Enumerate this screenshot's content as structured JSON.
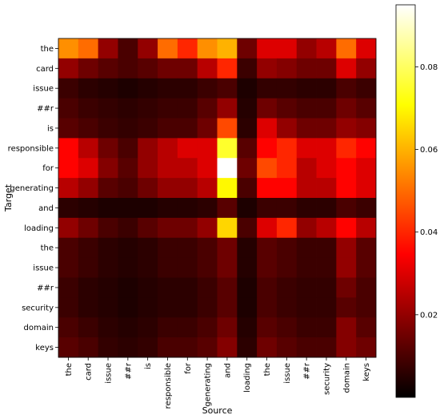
{
  "chart_data": {
    "type": "heatmap",
    "xlabel": "Source",
    "ylabel": "Target",
    "x_tokens": [
      "the",
      "card",
      "issue",
      "##r",
      "is",
      "responsible",
      "for",
      "generating",
      "and",
      "loading",
      "the",
      "issue",
      "##r",
      "security",
      "domain",
      "keys"
    ],
    "y_tokens": [
      "the",
      "card",
      "issue",
      "##r",
      "is",
      "responsible",
      "for",
      "generating",
      "and",
      "loading",
      "the",
      "issue",
      "##r",
      "security",
      "domain",
      "keys"
    ],
    "colormap": "hot",
    "color_range": [
      0.0,
      0.095
    ],
    "colorbar_ticks": [
      {
        "value": 0.02,
        "label": "0.02"
      },
      {
        "value": 0.04,
        "label": "0.04"
      },
      {
        "value": 0.06,
        "label": "0.06"
      },
      {
        "value": 0.08,
        "label": "0.08"
      }
    ],
    "values": [
      [
        0.055,
        0.05,
        0.02,
        0.01,
        0.02,
        0.05,
        0.04,
        0.055,
        0.06,
        0.015,
        0.03,
        0.03,
        0.02,
        0.025,
        0.05,
        0.03
      ],
      [
        0.02,
        0.015,
        0.012,
        0.01,
        0.012,
        0.015,
        0.015,
        0.025,
        0.04,
        0.008,
        0.02,
        0.018,
        0.015,
        0.015,
        0.03,
        0.02
      ],
      [
        0.008,
        0.006,
        0.005,
        0.004,
        0.005,
        0.006,
        0.006,
        0.008,
        0.01,
        0.004,
        0.007,
        0.007,
        0.006,
        0.006,
        0.01,
        0.008
      ],
      [
        0.01,
        0.008,
        0.007,
        0.006,
        0.007,
        0.008,
        0.008,
        0.012,
        0.02,
        0.005,
        0.015,
        0.012,
        0.01,
        0.01,
        0.015,
        0.012
      ],
      [
        0.012,
        0.01,
        0.008,
        0.007,
        0.008,
        0.01,
        0.01,
        0.015,
        0.045,
        0.006,
        0.03,
        0.02,
        0.015,
        0.015,
        0.02,
        0.018
      ],
      [
        0.035,
        0.025,
        0.015,
        0.01,
        0.02,
        0.025,
        0.03,
        0.03,
        0.075,
        0.012,
        0.035,
        0.04,
        0.03,
        0.03,
        0.04,
        0.035
      ],
      [
        0.035,
        0.03,
        0.018,
        0.012,
        0.02,
        0.025,
        0.025,
        0.03,
        0.095,
        0.015,
        0.045,
        0.04,
        0.025,
        0.03,
        0.035,
        0.03
      ],
      [
        0.025,
        0.02,
        0.012,
        0.01,
        0.015,
        0.02,
        0.02,
        0.025,
        0.07,
        0.01,
        0.035,
        0.035,
        0.025,
        0.025,
        0.035,
        0.03
      ],
      [
        0.006,
        0.005,
        0.004,
        0.004,
        0.004,
        0.005,
        0.005,
        0.006,
        0.012,
        0.004,
        0.008,
        0.008,
        0.006,
        0.006,
        0.01,
        0.008
      ],
      [
        0.02,
        0.015,
        0.01,
        0.008,
        0.012,
        0.015,
        0.015,
        0.02,
        0.065,
        0.01,
        0.03,
        0.04,
        0.02,
        0.025,
        0.035,
        0.025
      ],
      [
        0.01,
        0.008,
        0.006,
        0.005,
        0.006,
        0.008,
        0.008,
        0.01,
        0.015,
        0.005,
        0.012,
        0.01,
        0.008,
        0.008,
        0.02,
        0.012
      ],
      [
        0.01,
        0.008,
        0.006,
        0.005,
        0.006,
        0.008,
        0.008,
        0.01,
        0.015,
        0.005,
        0.012,
        0.01,
        0.008,
        0.008,
        0.02,
        0.012
      ],
      [
        0.008,
        0.006,
        0.005,
        0.004,
        0.005,
        0.006,
        0.006,
        0.008,
        0.012,
        0.004,
        0.01,
        0.008,
        0.007,
        0.007,
        0.015,
        0.01
      ],
      [
        0.008,
        0.006,
        0.005,
        0.004,
        0.005,
        0.006,
        0.006,
        0.008,
        0.012,
        0.004,
        0.01,
        0.008,
        0.007,
        0.007,
        0.012,
        0.01
      ],
      [
        0.01,
        0.008,
        0.006,
        0.005,
        0.006,
        0.008,
        0.008,
        0.01,
        0.015,
        0.005,
        0.012,
        0.01,
        0.008,
        0.008,
        0.018,
        0.012
      ],
      [
        0.012,
        0.01,
        0.007,
        0.006,
        0.007,
        0.01,
        0.01,
        0.012,
        0.018,
        0.006,
        0.015,
        0.012,
        0.01,
        0.01,
        0.018,
        0.015
      ]
    ]
  }
}
